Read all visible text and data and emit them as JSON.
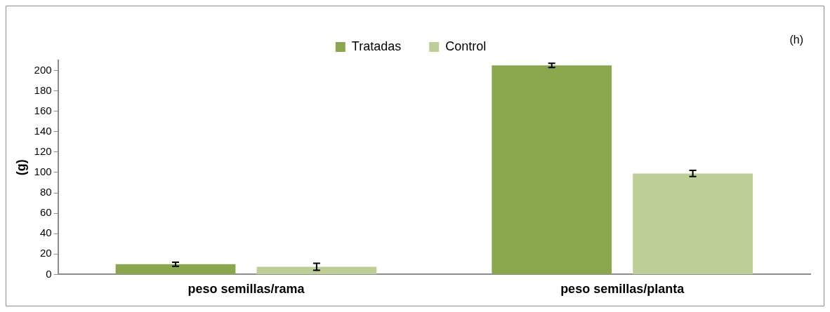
{
  "chart_data": {
    "type": "bar",
    "ylabel": "(g)",
    "annotations": [
      "(h)"
    ],
    "categories": [
      "peso semillas/rama",
      "peso semillas/planta"
    ],
    "series": [
      {
        "name": "Tratadas",
        "color": "#8ba74e",
        "values": [
          10,
          205
        ],
        "errors": [
          2,
          2
        ]
      },
      {
        "name": "Control",
        "color": "#bdcf97",
        "values": [
          7.5,
          99
        ],
        "errors": [
          3.5,
          3
        ]
      }
    ],
    "ylim": [
      0,
      210
    ],
    "yticks": [
      0,
      20,
      40,
      60,
      80,
      100,
      120,
      140,
      160,
      180,
      200
    ],
    "grid": false,
    "legend": "top"
  }
}
